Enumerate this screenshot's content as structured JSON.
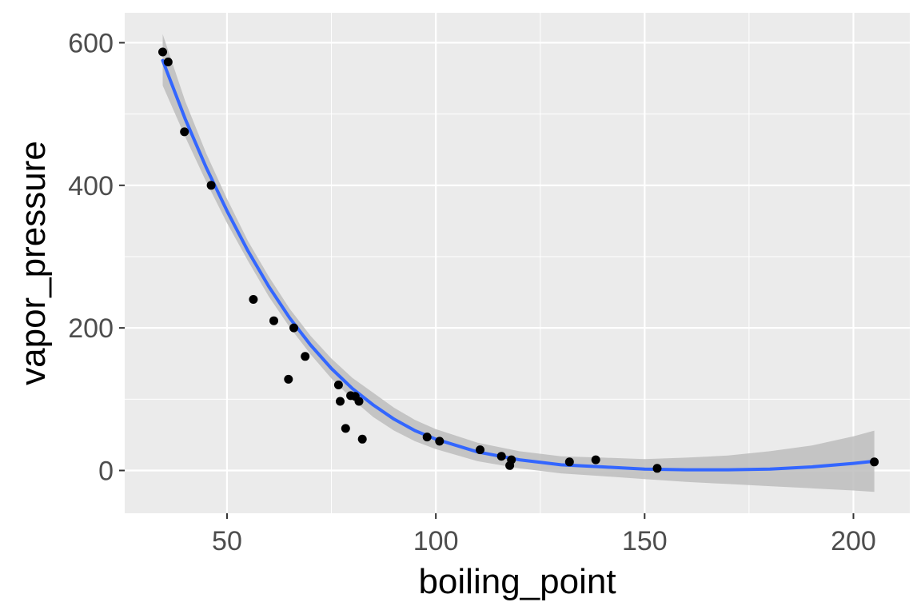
{
  "chart_data": {
    "type": "scatter",
    "title": "",
    "xlabel": "boiling_point",
    "ylabel": "vapor_pressure",
    "xlim": [
      25.5,
      213.5
    ],
    "ylim": [
      -60,
      642
    ],
    "x_ticks": [
      50,
      100,
      150,
      200
    ],
    "x_tick_labels": [
      "50",
      "100",
      "150",
      "200"
    ],
    "y_ticks": [
      0,
      200,
      400,
      600
    ],
    "y_tick_labels": [
      "0",
      "200",
      "400",
      "600"
    ],
    "grid": true,
    "points": [
      {
        "x": 34.6,
        "y": 587
      },
      {
        "x": 35.9,
        "y": 573
      },
      {
        "x": 39.8,
        "y": 475
      },
      {
        "x": 46.2,
        "y": 400
      },
      {
        "x": 56.3,
        "y": 240
      },
      {
        "x": 61.2,
        "y": 210
      },
      {
        "x": 64.7,
        "y": 128
      },
      {
        "x": 66.0,
        "y": 200
      },
      {
        "x": 68.7,
        "y": 160
      },
      {
        "x": 76.7,
        "y": 120
      },
      {
        "x": 77.1,
        "y": 97
      },
      {
        "x": 78.4,
        "y": 59
      },
      {
        "x": 79.6,
        "y": 105
      },
      {
        "x": 80.7,
        "y": 104
      },
      {
        "x": 81.6,
        "y": 97
      },
      {
        "x": 82.4,
        "y": 44
      },
      {
        "x": 97.9,
        "y": 47
      },
      {
        "x": 100.9,
        "y": 41
      },
      {
        "x": 110.6,
        "y": 29
      },
      {
        "x": 115.7,
        "y": 20
      },
      {
        "x": 117.7,
        "y": 7
      },
      {
        "x": 118.1,
        "y": 15
      },
      {
        "x": 132.0,
        "y": 12
      },
      {
        "x": 138.3,
        "y": 15
      },
      {
        "x": 153.0,
        "y": 3
      },
      {
        "x": 205.0,
        "y": 12
      }
    ],
    "smooth": {
      "x": [
        34.6,
        40,
        45,
        50,
        55,
        60,
        65,
        70,
        75,
        80,
        85,
        90,
        95,
        100,
        110,
        120,
        130,
        140,
        150,
        160,
        170,
        180,
        190,
        200,
        205
      ],
      "y": [
        575,
        493,
        425,
        364,
        308,
        258,
        214,
        176,
        143,
        115,
        92,
        72,
        56,
        44,
        26,
        15,
        8,
        5,
        2,
        1,
        1,
        2,
        5,
        10,
        13
      ],
      "ci_lower": [
        540,
        468,
        405,
        347,
        294,
        244,
        201,
        163,
        129,
        100,
        75,
        56,
        41,
        30,
        13,
        3,
        -4,
        -8,
        -12,
        -16,
        -19,
        -22,
        -25,
        -28,
        -30
      ],
      "ci_upper": [
        612,
        518,
        445,
        381,
        322,
        272,
        227,
        189,
        157,
        130,
        109,
        88,
        71,
        58,
        39,
        27,
        20,
        18,
        16,
        18,
        21,
        27,
        35,
        48,
        56
      ],
      "color": "#3366FF",
      "band_color": "#bdbdbd"
    },
    "colors": {
      "panel": "#ebebeb",
      "grid": "#ffffff",
      "point": "#000000"
    }
  }
}
